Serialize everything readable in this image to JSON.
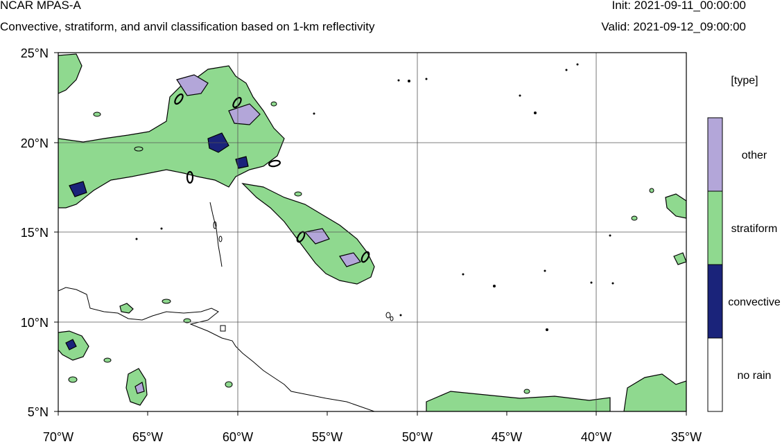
{
  "header": {
    "title": "NCAR MPAS-A",
    "subtitle": "Convective, stratiform, and anvil classification based on 1-km reflectivity",
    "init": "Init: 2021-09-11_00:00:00",
    "valid": "Valid: 2021-09-12_09:00:00"
  },
  "map": {
    "lat_ticks": [
      "25°N",
      "20°N",
      "15°N",
      "10°N",
      "5°N"
    ],
    "lon_ticks": [
      "70°W",
      "65°W",
      "60°W",
      "55°W",
      "50°W",
      "45°W",
      "40°W",
      "35°W"
    ],
    "lat_range": [
      5,
      25
    ],
    "lon_range": [
      -70,
      -35
    ]
  },
  "legend": {
    "title": "[type]",
    "entries": [
      {
        "label": "other",
        "color": "#b3a6d9"
      },
      {
        "label": "stratiform",
        "color": "#8fd98f"
      },
      {
        "label": "convective",
        "color": "#1a237a"
      },
      {
        "label": "no rain",
        "color": "#ffffff"
      }
    ]
  },
  "colors": {
    "stratiform": "#8fd98f",
    "convective": "#1a237a",
    "other": "#b3a6d9",
    "coastline": "#000000",
    "grid": "#555555"
  }
}
